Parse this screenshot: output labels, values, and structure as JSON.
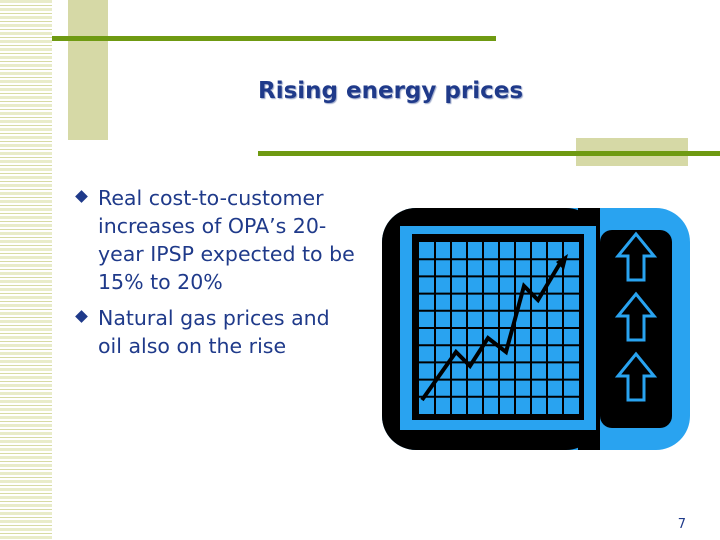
{
  "slide": {
    "title": "Rising energy prices",
    "bullets": [
      "Real cost-to-customer increases of OPA’s 20-year IPSP expected to be 15% to 20%",
      "Natural gas prices and oil also on the rise"
    ],
    "page_number": "7"
  },
  "colors": {
    "title_text": "#1f3a8a",
    "accent_rule": "#6f9a12",
    "decor_tan": "#d6d9a6",
    "graphic_blue": "#29a3f0",
    "graphic_frame": "#000000"
  },
  "icons": {
    "bullet": "diamond-bullet-icon",
    "graphic": "rising-chart-icon",
    "arrows": "up-arrow-icon"
  }
}
